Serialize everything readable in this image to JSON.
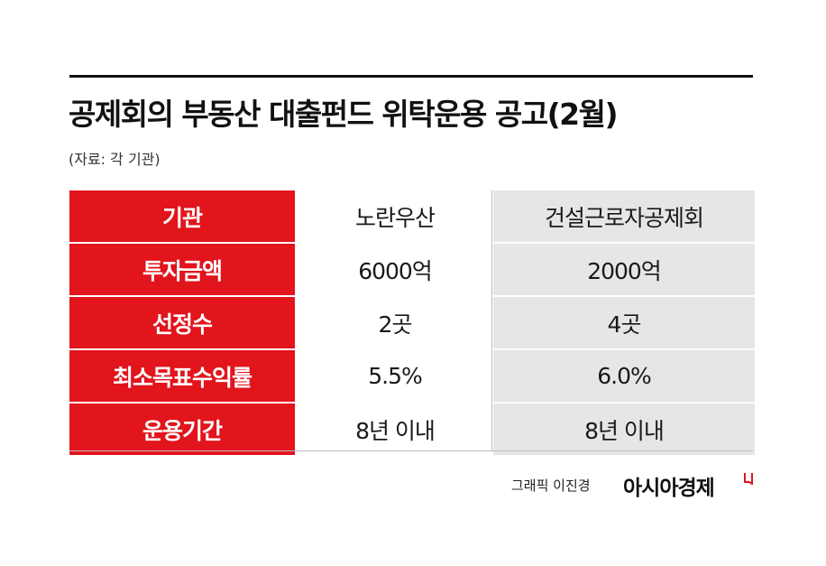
{
  "title": "공제회의 부동산 대출펀드 위탁운용 공고(2월)",
  "source": "(자료: 각 기관)",
  "table": {
    "header": {
      "label": "기관",
      "col_a": "노란우산",
      "col_b": "건설근로자공제회"
    },
    "rows": [
      {
        "label": "투자금액",
        "col_a": "6000억",
        "col_b": "2000억"
      },
      {
        "label": "선정수",
        "col_a": "2곳",
        "col_b": "4곳"
      },
      {
        "label": "최소목표수익률",
        "col_a": "5.5%",
        "col_b": "6.0%"
      },
      {
        "label": "운용기간",
        "col_a": "8년 이내",
        "col_b": "8년 이내"
      }
    ]
  },
  "footer": {
    "credit": "그래픽 이진경",
    "brand": "아시아경제"
  },
  "colors": {
    "accent": "#e2141c",
    "shade": "#e6e6e6"
  }
}
